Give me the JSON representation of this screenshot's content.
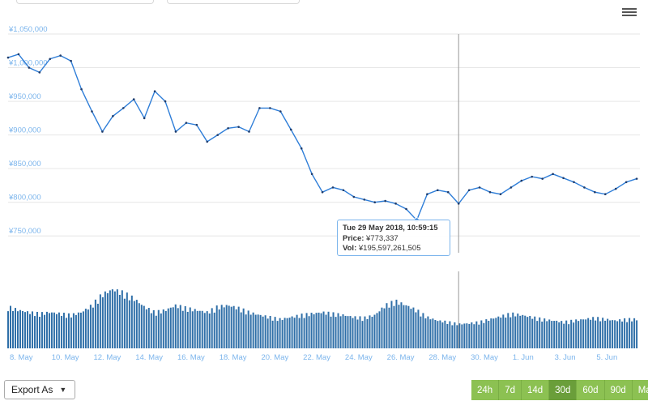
{
  "menu_icon": "hamburger-menu-icon",
  "chart_data": {
    "type": "line",
    "title": "",
    "xlabel": "",
    "ylabel": "",
    "currency_symbol": "¥",
    "ylim": [
      725000,
      1050000
    ],
    "y_ticks": [
      "¥1,050,000",
      "¥1,000,000",
      "¥950,000",
      "¥900,000",
      "¥850,000",
      "¥800,000",
      "¥750,000"
    ],
    "x_ticks": [
      "8. May",
      "10. May",
      "12. May",
      "14. May",
      "16. May",
      "18. May",
      "20. May",
      "22. May",
      "24. May",
      "26. May",
      "28. May",
      "30. May",
      "1. Jun",
      "3. Jun",
      "5. Jun"
    ],
    "x_day_range": [
      0,
      30
    ],
    "series": [
      {
        "type": "line",
        "x_days": [
          0,
          0.5,
          1,
          1.5,
          2,
          2.5,
          3,
          3.5,
          4,
          4.5,
          5,
          5.5,
          6,
          6.5,
          7,
          7.5,
          8,
          8.5,
          9,
          9.5,
          10,
          10.5,
          11,
          11.5,
          12,
          12.5,
          13,
          13.5,
          14,
          14.5,
          15,
          15.5,
          16,
          16.5,
          17,
          17.5,
          18,
          18.5,
          19,
          19.5,
          20,
          20.5,
          21,
          21.5,
          22,
          22.5,
          23,
          23.5,
          24,
          24.5,
          25,
          25.5,
          26,
          26.5,
          27,
          27.5,
          28,
          28.5,
          29,
          29.5,
          30
        ],
        "values": [
          1015000,
          1020000,
          1000000,
          993000,
          1013000,
          1018000,
          1010000,
          968000,
          935000,
          905000,
          928000,
          940000,
          953000,
          925000,
          965000,
          950000,
          905000,
          918000,
          915000,
          890000,
          900000,
          910000,
          912000,
          905000,
          940000,
          940000,
          935000,
          908000,
          880000,
          842000,
          815000,
          822000,
          818000,
          808000,
          804000,
          800000,
          802000,
          798000,
          790000,
          773337,
          812000,
          818000,
          815000,
          798000,
          818000,
          822000,
          815000,
          812000,
          822000,
          832000,
          838000,
          835000,
          842000,
          836000,
          830000,
          822000,
          815000,
          812000,
          820000,
          830000,
          835000
        ]
      },
      {
        "type": "volume-bars",
        "name": "Vol",
        "note": "volume level shown as fraction of volume panel height (no axis printed)",
        "x_days": [
          0,
          0.5,
          1,
          1.5,
          2,
          2.5,
          3,
          3.5,
          4,
          4.5,
          5,
          5.5,
          6,
          6.5,
          7,
          7.5,
          8,
          8.5,
          9,
          9.5,
          10,
          10.5,
          11,
          11.5,
          12,
          12.5,
          13,
          13.5,
          14,
          14.5,
          15,
          15.5,
          16,
          16.5,
          17,
          17.5,
          18,
          18.5,
          19,
          19.5,
          20,
          20.5,
          21,
          21.5,
          22,
          22.5,
          23,
          23.5,
          24,
          24.5,
          25,
          25.5,
          26,
          26.5,
          27,
          27.5,
          28,
          28.5,
          29,
          29.5,
          30
        ],
        "levels": [
          0.6,
          0.55,
          0.52,
          0.5,
          0.52,
          0.5,
          0.48,
          0.52,
          0.62,
          0.78,
          0.85,
          0.8,
          0.72,
          0.6,
          0.52,
          0.55,
          0.62,
          0.58,
          0.55,
          0.52,
          0.6,
          0.62,
          0.58,
          0.52,
          0.48,
          0.45,
          0.42,
          0.45,
          0.48,
          0.5,
          0.52,
          0.5,
          0.48,
          0.45,
          0.44,
          0.48,
          0.62,
          0.68,
          0.62,
          0.55,
          0.45,
          0.4,
          0.38,
          0.35,
          0.36,
          0.38,
          0.42,
          0.46,
          0.5,
          0.48,
          0.45,
          0.42,
          0.4,
          0.38,
          0.4,
          0.42,
          0.44,
          0.42,
          0.4,
          0.42,
          0.42
        ]
      }
    ],
    "crosshair_day": 21.5,
    "grid": true,
    "legend": "none"
  },
  "tooltip": {
    "date": "Tue 29 May 2018, 10:59:15",
    "price_label": "Price:",
    "price_value": "¥773,337",
    "vol_label": "Vol:",
    "vol_value": "¥195,597,261,505"
  },
  "export_label": "Export As",
  "range_buttons": [
    "24h",
    "7d",
    "14d",
    "30d",
    "60d",
    "90d",
    "Max"
  ],
  "active_range": "30d",
  "colors": {
    "line": "#2f7ed8",
    "line_light": "#7cb5ec",
    "volume": "#2f6fa8",
    "grid": "#e6e6e6",
    "tick": "#7cb5ec",
    "range_bg": "#8cc152",
    "range_active_bg": "#6a9e3a"
  }
}
